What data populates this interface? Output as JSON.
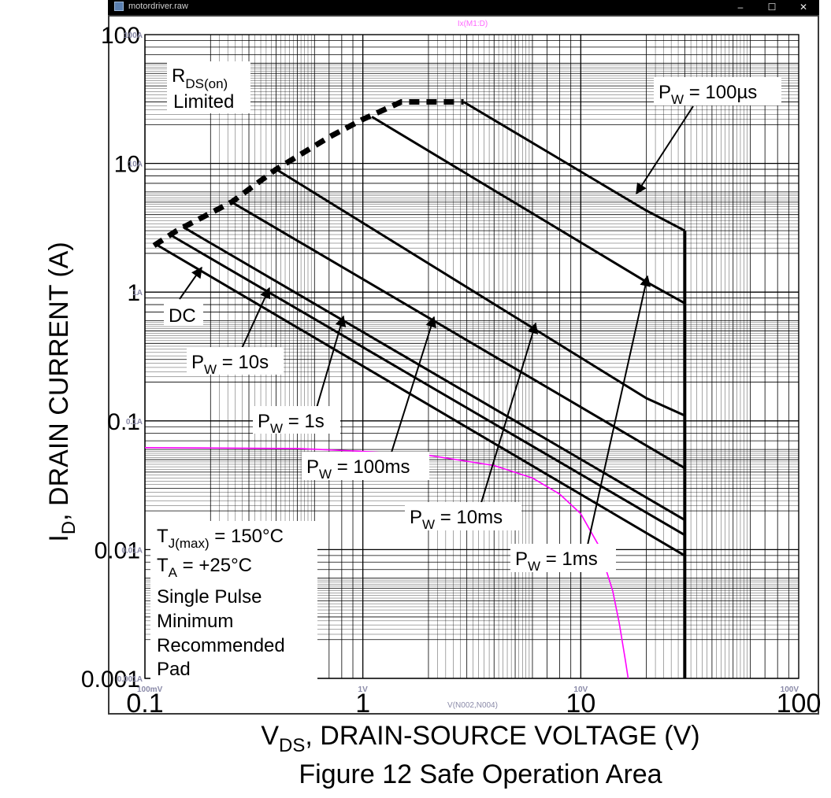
{
  "window": {
    "title": "motordriver.raw",
    "minimize_label": "–",
    "maximize_label": "☐",
    "close_label": "✕"
  },
  "chart_data": {
    "type": "line",
    "title": "Figure 12  Safe Operation Area",
    "xlabel": {
      "main": "V",
      "sub": "DS",
      "rest": ", DRAIN-SOURCE VOLTAGE (V)"
    },
    "ylabel": {
      "main": "I",
      "sub": "D",
      "rest": ", DRAIN CURRENT (A)"
    },
    "x_scale": "log",
    "y_scale": "log",
    "xlim": [
      0.1,
      100
    ],
    "ylim": [
      0.001,
      100
    ],
    "grid": true,
    "x_ticks": [
      {
        "value": 0.1,
        "label": "0.1",
        "sim_label": "100mV"
      },
      {
        "value": 1,
        "label": "1",
        "sim_label": "1V"
      },
      {
        "value": 10,
        "label": "10",
        "sim_label": "10V"
      },
      {
        "value": 100,
        "label": "100",
        "sim_label": "100V"
      }
    ],
    "y_ticks": [
      {
        "value": 100,
        "label": "100",
        "sim_label": "100A"
      },
      {
        "value": 10,
        "label": "10",
        "sim_label": "10A"
      },
      {
        "value": 1,
        "label": "1",
        "sim_label": "1A"
      },
      {
        "value": 0.1,
        "label": "0.1",
        "sim_label": "0.1A"
      },
      {
        "value": 0.01,
        "label": "0.01",
        "sim_label": "0.01A"
      },
      {
        "value": 0.001,
        "label": "0.001",
        "sim_label": "0.001A"
      }
    ],
    "sim_trace_label": "Ix(M1:D)",
    "sim_x_label": "V(N002,N004)",
    "colors": {
      "sim_trace": "#ff00ff",
      "sim_text": "#ff66ff",
      "sim_axis_text": "#8a8aa8",
      "soa": "#000000"
    },
    "series": [
      {
        "name": "PW = 100µs",
        "points": [
          [
            2.9,
            30
          ],
          [
            20,
            4.3
          ],
          [
            30,
            3.0
          ]
        ]
      },
      {
        "name": "PW = 1ms",
        "points": [
          [
            1.1,
            23
          ],
          [
            20,
            1.2
          ],
          [
            30,
            0.82
          ]
        ]
      },
      {
        "name": "PW = 10ms",
        "points": [
          [
            0.4,
            9.0
          ],
          [
            20,
            0.15
          ],
          [
            30,
            0.11
          ]
        ]
      },
      {
        "name": "PW = 100ms",
        "points": [
          [
            0.25,
            5.0
          ],
          [
            30,
            0.043
          ]
        ]
      },
      {
        "name": "PW = 1s",
        "points": [
          [
            0.15,
            3.2
          ],
          [
            30,
            0.017
          ]
        ]
      },
      {
        "name": "PW = 10s",
        "points": [
          [
            0.13,
            2.8
          ],
          [
            30,
            0.013
          ]
        ]
      },
      {
        "name": "DC",
        "points": [
          [
            0.11,
            2.4
          ],
          [
            30,
            0.009
          ]
        ]
      },
      {
        "name": "RDS(on) Limited",
        "points": [
          [
            0.11,
            2.3
          ],
          [
            0.14,
            3.0
          ],
          [
            0.25,
            5.0
          ],
          [
            0.4,
            9.0
          ],
          [
            0.7,
            16
          ],
          [
            1.0,
            22
          ],
          [
            1.5,
            30
          ],
          [
            2.9,
            30
          ]
        ]
      },
      {
        "name": "Ix(M1:D)",
        "points": [
          [
            0.1,
            0.062
          ],
          [
            0.5,
            0.061
          ],
          [
            1.0,
            0.058
          ],
          [
            2.0,
            0.054
          ],
          [
            4.0,
            0.045
          ],
          [
            6.0,
            0.036
          ],
          [
            8.0,
            0.027
          ],
          [
            10,
            0.019
          ],
          [
            12,
            0.011
          ],
          [
            14,
            0.0048
          ],
          [
            15,
            0.0027
          ],
          [
            16,
            0.0014
          ],
          [
            16.5,
            0.001
          ]
        ]
      }
    ],
    "vds_max_limit": {
      "x": 30,
      "y_top": 3.0,
      "y_bottom": 0.001
    },
    "labels": {
      "rds_line1_main": "R",
      "rds_line1_sub": "DS(on)",
      "rds_line2": "Limited",
      "dc": "DC",
      "pw_main": "P",
      "pw_sub": "W",
      "pw_10s": " = 10s",
      "pw_1s": " = 1s",
      "pw_100ms": " = 100ms",
      "pw_10ms": " = 10ms",
      "pw_1ms": " = 1ms",
      "pw_100us": " = 100µs"
    },
    "conditions": {
      "tj_main": "T",
      "tj_sub": "J(max)",
      "tj_rest": " = 150°C",
      "ta_main": "T",
      "ta_sub": "A",
      "ta_rest": " = +25°C",
      "line3": "Single Pulse",
      "line4": "Minimum",
      "line5": "Recommended",
      "line6": "Pad"
    }
  }
}
